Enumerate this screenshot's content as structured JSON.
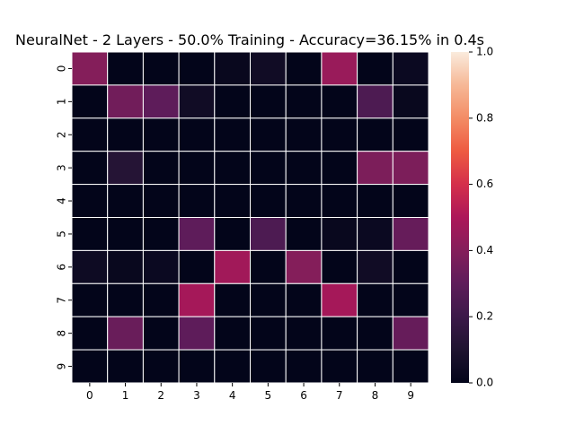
{
  "chart_data": {
    "type": "heatmap",
    "title": "NeuralNet - 2 Layers - 50.0% Training - Accuracy=36.15% in 0.4s",
    "xlabel": "",
    "ylabel": "",
    "x_categories": [
      "0",
      "1",
      "2",
      "3",
      "4",
      "5",
      "6",
      "7",
      "8",
      "9"
    ],
    "y_categories": [
      "0",
      "1",
      "2",
      "3",
      "4",
      "5",
      "6",
      "7",
      "8",
      "9"
    ],
    "values": [
      [
        0.4,
        0.0,
        0.0,
        0.0,
        0.02,
        0.05,
        0.0,
        0.45,
        0.0,
        0.03
      ],
      [
        0.0,
        0.35,
        0.3,
        0.05,
        0.0,
        0.0,
        0.0,
        0.0,
        0.25,
        0.02
      ],
      [
        0.0,
        0.0,
        0.0,
        0.0,
        0.0,
        0.0,
        0.0,
        0.0,
        0.0,
        0.0
      ],
      [
        0.0,
        0.12,
        0.0,
        0.0,
        0.0,
        0.0,
        0.0,
        0.0,
        0.38,
        0.38
      ],
      [
        0.0,
        0.0,
        0.0,
        0.0,
        0.0,
        0.0,
        0.0,
        0.0,
        0.0,
        0.0
      ],
      [
        0.0,
        0.0,
        0.0,
        0.3,
        0.0,
        0.25,
        0.0,
        0.02,
        0.03,
        0.32
      ],
      [
        0.04,
        0.02,
        0.03,
        0.0,
        0.47,
        0.0,
        0.4,
        0.0,
        0.05,
        0.0
      ],
      [
        0.0,
        0.0,
        0.0,
        0.48,
        0.0,
        0.0,
        0.0,
        0.48,
        0.0,
        0.0
      ],
      [
        0.0,
        0.33,
        0.0,
        0.3,
        0.0,
        0.0,
        0.0,
        0.0,
        0.0,
        0.32
      ],
      [
        0.0,
        0.0,
        0.0,
        0.0,
        0.0,
        0.0,
        0.0,
        0.0,
        0.0,
        0.0
      ]
    ],
    "vmin": 0.0,
    "vmax": 1.0,
    "colormap": "rocket",
    "colorbar_ticks": [
      "0.0",
      "0.2",
      "0.4",
      "0.6",
      "0.8",
      "1.0"
    ],
    "cell_lines": "white",
    "grid": false
  }
}
